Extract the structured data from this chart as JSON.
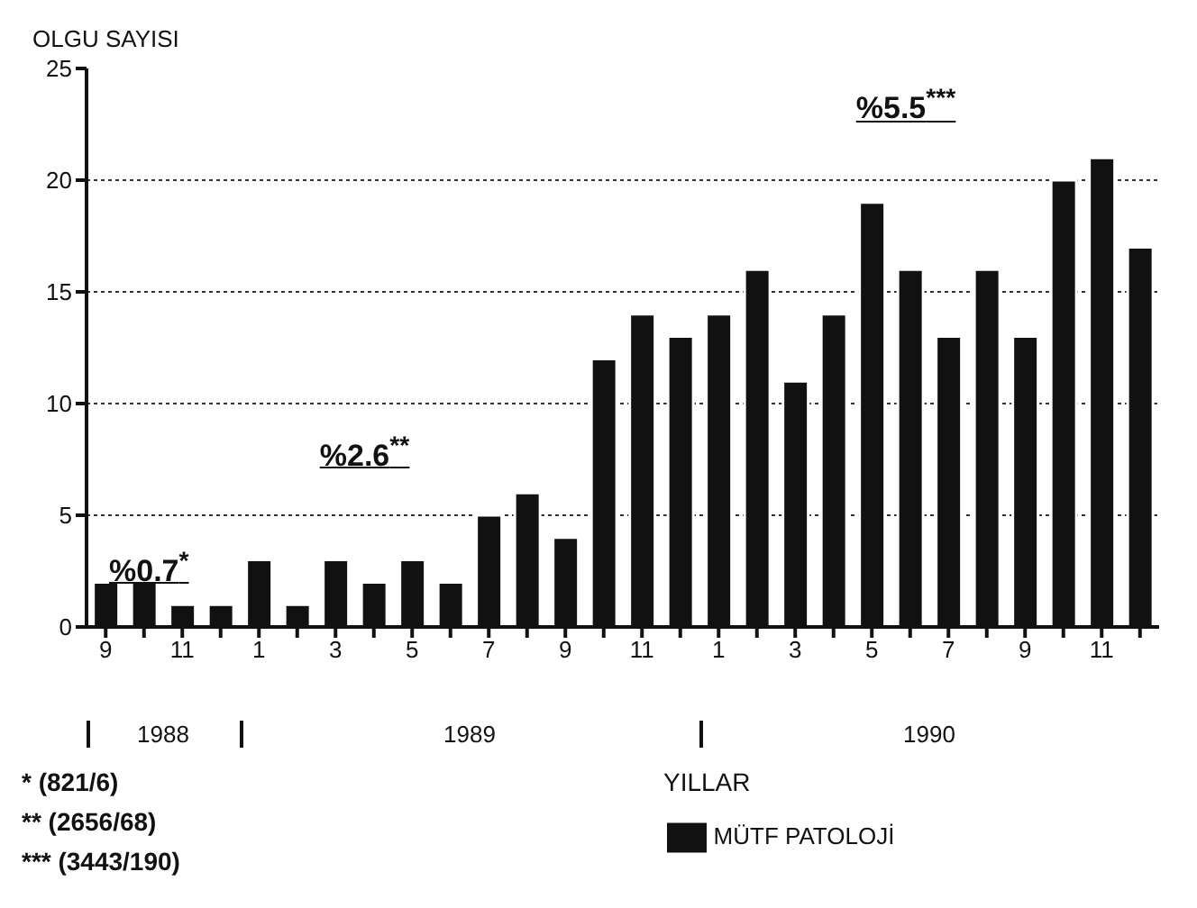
{
  "chart_data": {
    "type": "bar",
    "ylabel": "OLGU SAYISI",
    "xlabel": "YILLAR",
    "categories": [
      "9",
      null,
      "11",
      null,
      "1",
      null,
      "3",
      null,
      "5",
      null,
      "7",
      null,
      "9",
      null,
      "11",
      null,
      "1",
      null,
      "3",
      null,
      "5",
      null,
      "7",
      null,
      "9",
      null,
      "11",
      null
    ],
    "series": [
      {
        "name": "MÜTF PATOLOJİ",
        "color": "#111111",
        "values": [
          2,
          2,
          1,
          1,
          3,
          1,
          3,
          2,
          3,
          2,
          5,
          6,
          4,
          12,
          14,
          13,
          14,
          16,
          11,
          14,
          19,
          16,
          13,
          16,
          13,
          20,
          21,
          17
        ]
      }
    ],
    "ylim": [
      0,
      25
    ],
    "yticks": [
      0,
      5,
      10,
      15,
      20,
      25
    ],
    "grid": "y",
    "legend": "bottom",
    "annotations": [
      "%0.7$^{*}$",
      "%2.6$^{**}$",
      "%5.5$^{***}$",
      "1988",
      "1989",
      "1990",
      "* (821/6)",
      "** (2656/68)",
      "*** (3443/190)"
    ]
  }
}
